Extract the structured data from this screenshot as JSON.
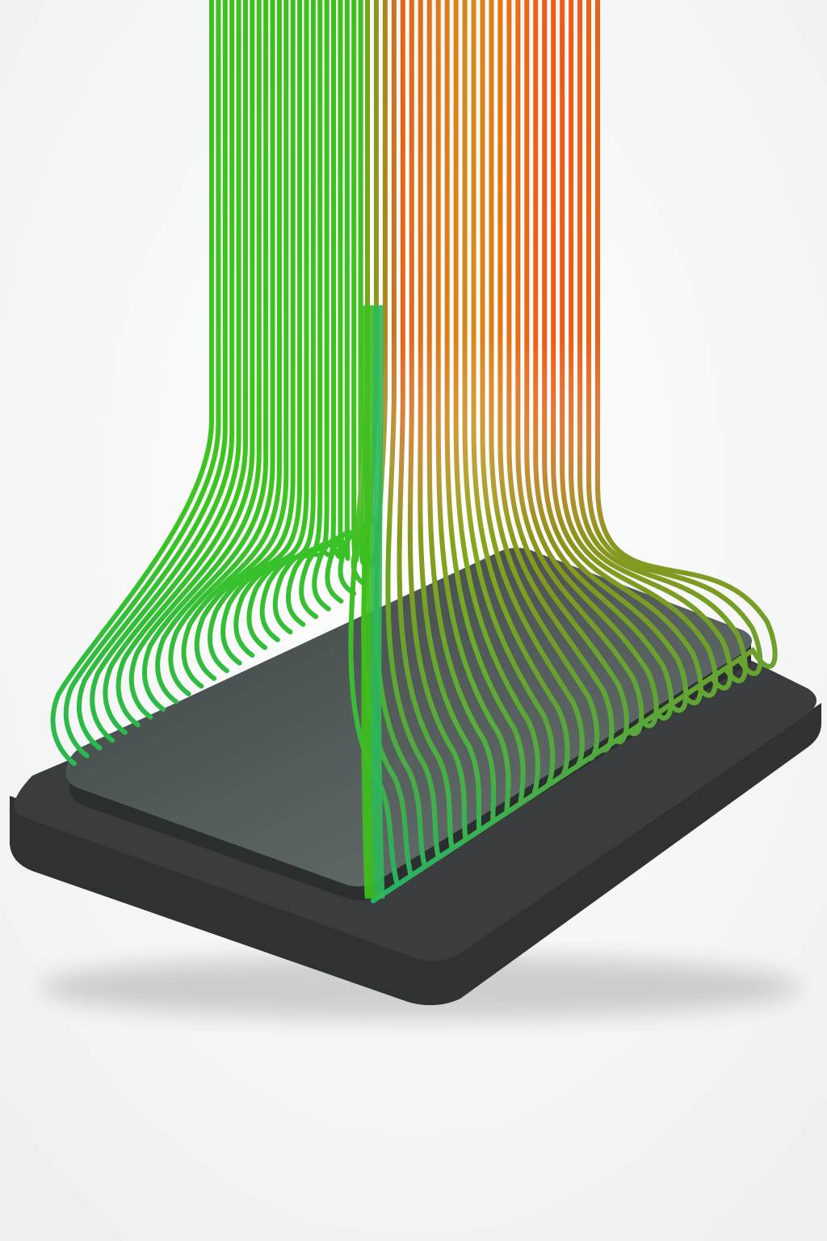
{
  "scene": {
    "subject": "flow-streamlines-over-plate",
    "colors": {
      "background": "#ffffff",
      "background_edge": "#eef0ef",
      "base_side": "#2f3232",
      "base_top": "#3a3d3d",
      "plate_top_dark": "#3c4443",
      "plate_top_light": "#6b7572",
      "plate_edge": "#2a2e2e",
      "low": "#1fb36b",
      "mid": "#3fbf1f",
      "warm": "#a9c21a",
      "hot": "#e3661b",
      "peak": "#f05a12"
    },
    "streamlines": {
      "left_sheet_count": 24,
      "right_sheet_count": 27
    }
  }
}
